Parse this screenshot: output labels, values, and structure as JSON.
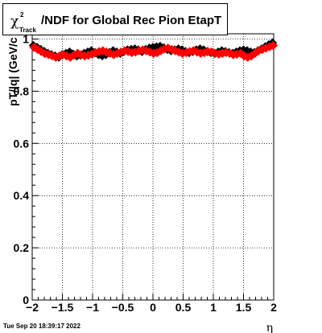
{
  "title": {
    "chi_symbol": "χ",
    "superscript": "2",
    "subscript": "Track",
    "main": "/NDF for Global Rec Pion EtapT"
  },
  "footer": {
    "timestamp": "Tue Sep 20 18:39:17 2022"
  },
  "chart_data": {
    "type": "scatter",
    "title": "χ²_Track/NDF for Global Rec Pion EtapT",
    "xlabel": "η",
    "ylabel": "pT/|q| (GeV/c",
    "xlim": [
      -2,
      2
    ],
    "ylim": [
      0,
      1.02
    ],
    "xticks": [
      -2,
      -1.5,
      -1,
      -0.5,
      0,
      0.5,
      1,
      1.5,
      2
    ],
    "xtick_labels": [
      "−2",
      "−1.5",
      "−1",
      "−0.5",
      "0",
      "0.5",
      "1",
      "1.5",
      "2"
    ],
    "yticks": [
      0,
      0.2,
      0.4,
      0.6,
      0.8,
      1
    ],
    "ytick_labels": [
      "0",
      "0.2",
      "0.4",
      "0.6",
      "0.8",
      "1"
    ],
    "grid": true,
    "colors": {
      "series_black": "#000000",
      "series_red": "#ff0000"
    },
    "series": [
      {
        "color": "#000000",
        "x": [
          -1.98,
          -1.92,
          -1.86,
          -1.8,
          -1.74,
          -1.68,
          -1.62,
          -1.56,
          -1.5,
          -1.44,
          -1.38,
          -1.32,
          -1.26,
          -1.2,
          -1.14,
          -1.08,
          -1.02,
          -0.96,
          -0.9,
          -0.84,
          -0.78,
          -0.72,
          -0.66,
          -0.6,
          -0.54,
          -0.48,
          -0.42,
          -0.36,
          -0.3,
          -0.24,
          -0.18,
          -0.12,
          -0.06,
          0.0,
          0.06,
          0.12,
          0.18,
          0.24,
          0.3,
          0.36,
          0.42,
          0.48,
          0.54,
          0.6,
          0.66,
          0.72,
          0.78,
          0.84,
          0.9,
          0.96,
          1.02,
          1.08,
          1.14,
          1.2,
          1.26,
          1.32,
          1.38,
          1.44,
          1.5,
          1.56,
          1.62,
          1.68,
          1.74,
          1.8,
          1.86,
          1.92,
          1.98
        ],
        "y": [
          0.975,
          0.968,
          0.96,
          0.952,
          0.945,
          0.94,
          0.935,
          0.93,
          0.94,
          0.945,
          0.95,
          0.942,
          0.935,
          0.938,
          0.945,
          0.95,
          0.955,
          0.948,
          0.94,
          0.936,
          0.94,
          0.948,
          0.955,
          0.95,
          0.945,
          0.952,
          0.958,
          0.96,
          0.962,
          0.958,
          0.952,
          0.96,
          0.965,
          0.968,
          0.97,
          0.972,
          0.966,
          0.96,
          0.955,
          0.958,
          0.962,
          0.958,
          0.952,
          0.948,
          0.952,
          0.958,
          0.962,
          0.958,
          0.952,
          0.948,
          0.945,
          0.95,
          0.955,
          0.952,
          0.948,
          0.945,
          0.95,
          0.955,
          0.958,
          0.955,
          0.95,
          0.948,
          0.955,
          0.962,
          0.97,
          0.978,
          0.985
        ]
      },
      {
        "color": "#ff0000",
        "x": [
          -1.97,
          -1.91,
          -1.85,
          -1.79,
          -1.73,
          -1.67,
          -1.61,
          -1.55,
          -1.49,
          -1.43,
          -1.37,
          -1.31,
          -1.25,
          -1.19,
          -1.13,
          -1.07,
          -1.01,
          -0.95,
          -0.89,
          -0.83,
          -0.77,
          -0.71,
          -0.65,
          -0.59,
          -0.53,
          -0.47,
          -0.41,
          -0.35,
          -0.29,
          -0.23,
          -0.17,
          -0.11,
          -0.05,
          0.01,
          0.07,
          0.13,
          0.19,
          0.25,
          0.31,
          0.37,
          0.43,
          0.49,
          0.55,
          0.61,
          0.67,
          0.73,
          0.79,
          0.85,
          0.91,
          0.97,
          1.03,
          1.09,
          1.15,
          1.21,
          1.27,
          1.33,
          1.39,
          1.45,
          1.51,
          1.57,
          1.63,
          1.69,
          1.75,
          1.81,
          1.87,
          1.93,
          1.99
        ],
        "y": [
          0.968,
          0.96,
          0.952,
          0.944,
          0.94,
          0.936,
          0.93,
          0.935,
          0.94,
          0.935,
          0.93,
          0.938,
          0.945,
          0.94,
          0.935,
          0.938,
          0.942,
          0.948,
          0.952,
          0.955,
          0.95,
          0.945,
          0.94,
          0.945,
          0.95,
          0.955,
          0.952,
          0.948,
          0.95,
          0.955,
          0.958,
          0.955,
          0.95,
          0.945,
          0.948,
          0.955,
          0.962,
          0.965,
          0.96,
          0.955,
          0.95,
          0.945,
          0.948,
          0.952,
          0.955,
          0.95,
          0.945,
          0.948,
          0.952,
          0.95,
          0.945,
          0.942,
          0.945,
          0.948,
          0.945,
          0.94,
          0.942,
          0.945,
          0.935,
          0.93,
          0.935,
          0.945,
          0.955,
          0.96,
          0.965,
          0.97,
          0.975
        ]
      }
    ]
  }
}
